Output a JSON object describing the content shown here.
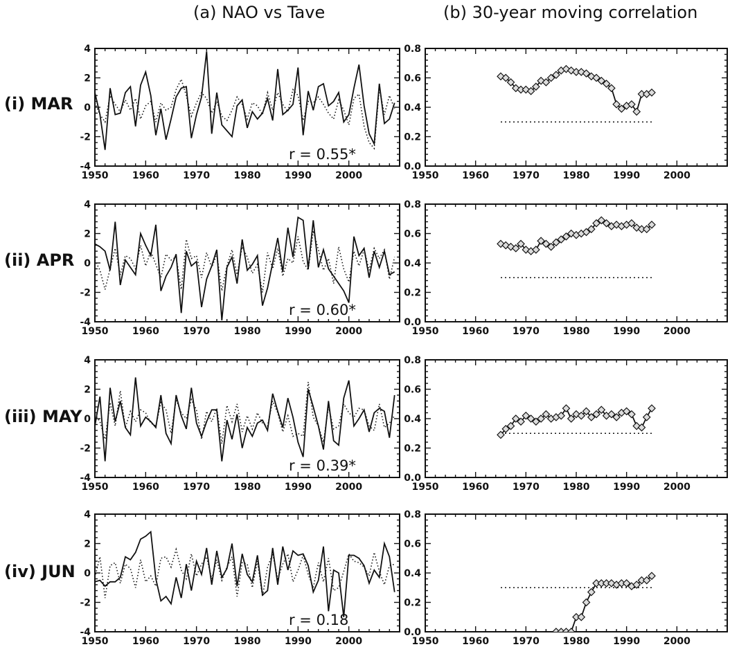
{
  "headers": {
    "left": "(a) NAO vs Tave",
    "right": "(b) 30-year moving correlation"
  },
  "rows": [
    {
      "label": "(i) MAR",
      "r_text": "r = 0.55*"
    },
    {
      "label": "(ii) APR",
      "r_text": "r = 0.60*"
    },
    {
      "label": "(iii) MAY",
      "r_text": "r = 0.39*"
    },
    {
      "label": "(iv) JUN",
      "r_text": "r = 0.18"
    }
  ],
  "chart_data": [
    {
      "type": "line",
      "panel": "(a) NAO vs Tave",
      "row": "(i) MAR",
      "xlim": [
        1950,
        2010
      ],
      "ylim": [
        -4,
        4
      ],
      "xticks": [
        1950,
        1960,
        1970,
        1980,
        1990,
        2000
      ],
      "yticks": [
        -4,
        -2,
        0,
        2,
        4
      ],
      "annotation": "r = 0.55*",
      "x_start": 1950,
      "series": [
        {
          "style": "solid",
          "values": [
            1.0,
            -0.5,
            -2.9,
            1.3,
            -0.5,
            -0.4,
            1.0,
            1.4,
            -1.3,
            1.5,
            2.4,
            0.8,
            -1.9,
            -0.1,
            -2.2,
            -0.8,
            0.7,
            1.3,
            1.4,
            -2.1,
            -0.5,
            0.7,
            3.8,
            -1.8,
            1.0,
            -1.2,
            -1.6,
            -2.0,
            0.1,
            0.5,
            -1.4,
            -0.3,
            -0.8,
            -0.4,
            0.6,
            -0.9,
            2.6,
            -0.5,
            -0.2,
            0.2,
            2.7,
            -1.9,
            1.1,
            -0.2,
            1.4,
            1.6,
            0.1,
            0.4,
            1.0,
            -1.0,
            -0.5,
            1.3,
            2.9,
            0.1,
            -1.8,
            -2.5,
            1.6,
            -1.1,
            -0.8,
            0.3
          ]
        },
        {
          "style": "dotted",
          "values": [
            0.3,
            -0.5,
            -1.0,
            0.8,
            0.2,
            -0.3,
            0.5,
            -0.2,
            0.6,
            -0.8,
            0.1,
            0.4,
            -1.0,
            0.3,
            -0.2,
            0.0,
            1.2,
            1.9,
            0.8,
            -0.6,
            0.3,
            1.0,
            0.6,
            -0.4,
            0.4,
            -0.6,
            -0.9,
            -0.2,
            0.7,
            0.2,
            -0.8,
            0.3,
            0.1,
            -0.5,
            1.0,
            -0.2,
            1.0,
            0.2,
            -0.3,
            1.2,
            0.8,
            -0.9,
            0.4,
            0.3,
            0.7,
            0.2,
            -0.4,
            -0.8,
            0.5,
            -0.2,
            -1.2,
            0.6,
            0.9,
            -1.3,
            -2.4,
            -2.8,
            1.3,
            -0.5,
            0.8,
            -0.1
          ]
        }
      ]
    },
    {
      "type": "line",
      "panel": "(b) 30-year moving correlation",
      "row": "(i) MAR",
      "xlim": [
        1950,
        2010
      ],
      "ylim": [
        0,
        0.8
      ],
      "xticks": [
        1950,
        1960,
        1970,
        1980,
        1990,
        2000
      ],
      "yticks": [
        0.0,
        0.2,
        0.4,
        0.6,
        0.8
      ],
      "threshold": 0.3,
      "x": [
        1965,
        1966,
        1967,
        1968,
        1969,
        1970,
        1971,
        1972,
        1973,
        1974,
        1975,
        1976,
        1977,
        1978,
        1979,
        1980,
        1981,
        1982,
        1983,
        1984,
        1985,
        1986,
        1987,
        1988,
        1989,
        1990,
        1991,
        1992,
        1993,
        1994,
        1995
      ],
      "values": [
        0.61,
        0.6,
        0.57,
        0.53,
        0.52,
        0.52,
        0.51,
        0.54,
        0.58,
        0.57,
        0.6,
        0.62,
        0.65,
        0.66,
        0.65,
        0.64,
        0.64,
        0.63,
        0.61,
        0.6,
        0.58,
        0.56,
        0.53,
        0.42,
        0.39,
        0.41,
        0.42,
        0.37,
        0.49,
        0.49,
        0.5
      ]
    },
    {
      "type": "line",
      "panel": "(a) NAO vs Tave",
      "row": "(ii) APR",
      "xlim": [
        1950,
        2010
      ],
      "ylim": [
        -4,
        4
      ],
      "xticks": [
        1950,
        1960,
        1970,
        1980,
        1990,
        2000
      ],
      "yticks": [
        -4,
        -2,
        0,
        2,
        4
      ],
      "annotation": "r = 0.60*",
      "x_start": 1950,
      "series": [
        {
          "style": "solid",
          "values": [
            1.3,
            1.1,
            0.8,
            -0.5,
            2.8,
            -1.5,
            0.2,
            -0.3,
            -0.8,
            2.0,
            1.2,
            0.5,
            2.6,
            -1.9,
            -0.9,
            -0.3,
            0.6,
            -3.4,
            0.8,
            -0.2,
            0.1,
            -3.0,
            -1.1,
            -0.2,
            0.9,
            -3.9,
            -0.3,
            0.4,
            -1.4,
            1.6,
            -0.5,
            -0.1,
            0.5,
            -2.9,
            -1.7,
            0.0,
            1.7,
            -0.6,
            2.4,
            0.4,
            3.1,
            2.9,
            -0.4,
            2.9,
            -0.3,
            0.9,
            -0.4,
            -0.9,
            -1.4,
            -1.9,
            -2.7,
            1.8,
            0.5,
            1.0,
            -1.0,
            0.8,
            -0.3,
            0.8,
            -0.8,
            -0.6
          ]
        },
        {
          "style": "dotted",
          "values": [
            0.2,
            -0.5,
            -1.8,
            -0.4,
            1.0,
            -0.8,
            0.5,
            0.3,
            -0.4,
            1.2,
            -0.2,
            0.8,
            -0.1,
            -1.0,
            0.6,
            0.2,
            0.4,
            -1.8,
            1.6,
            0.3,
            0.5,
            -1.0,
            0.7,
            -0.3,
            0.6,
            -1.9,
            -0.2,
            0.9,
            -0.8,
            1.1,
            0.4,
            -0.7,
            -0.1,
            -2.0,
            0.7,
            -0.4,
            1.0,
            -0.9,
            0.3,
            0.0,
            1.8,
            0.1,
            -0.5,
            2.2,
            0.9,
            -0.5,
            0.3,
            -1.4,
            1.1,
            -0.4,
            -1.3,
            0.8,
            -0.2,
            0.9,
            -0.5,
            1.0,
            0.3,
            0.9,
            -1.1,
            0.4
          ]
        }
      ]
    },
    {
      "type": "line",
      "panel": "(b) 30-year moving correlation",
      "row": "(ii) APR",
      "xlim": [
        1950,
        2010
      ],
      "ylim": [
        0,
        0.8
      ],
      "xticks": [
        1950,
        1960,
        1970,
        1980,
        1990,
        2000
      ],
      "yticks": [
        0.0,
        0.2,
        0.4,
        0.6,
        0.8
      ],
      "threshold": 0.3,
      "x": [
        1965,
        1966,
        1967,
        1968,
        1969,
        1970,
        1971,
        1972,
        1973,
        1974,
        1975,
        1976,
        1977,
        1978,
        1979,
        1980,
        1981,
        1982,
        1983,
        1984,
        1985,
        1986,
        1987,
        1988,
        1989,
        1990,
        1991,
        1992,
        1993,
        1994,
        1995
      ],
      "values": [
        0.53,
        0.52,
        0.51,
        0.5,
        0.53,
        0.49,
        0.48,
        0.49,
        0.55,
        0.53,
        0.51,
        0.54,
        0.56,
        0.58,
        0.6,
        0.59,
        0.6,
        0.61,
        0.63,
        0.67,
        0.69,
        0.67,
        0.65,
        0.66,
        0.65,
        0.66,
        0.67,
        0.64,
        0.63,
        0.63,
        0.66
      ]
    },
    {
      "type": "line",
      "panel": "(a) NAO vs Tave",
      "row": "(iii) MAY",
      "xlim": [
        1950,
        2010
      ],
      "ylim": [
        -4,
        4
      ],
      "xticks": [
        1950,
        1960,
        1970,
        1980,
        1990,
        2000
      ],
      "yticks": [
        -4,
        -2,
        0,
        2,
        4
      ],
      "annotation": "r = 0.39*",
      "x_start": 1950,
      "series": [
        {
          "style": "solid",
          "values": [
            -0.5,
            1.5,
            -2.9,
            2.1,
            -0.2,
            1.2,
            -0.6,
            -1.1,
            2.8,
            -0.5,
            0.1,
            -0.2,
            -0.6,
            1.6,
            -1.0,
            -1.7,
            1.6,
            0.2,
            -0.7,
            2.1,
            -0.3,
            -1.2,
            -0.2,
            0.6,
            0.6,
            -2.9,
            -0.1,
            -1.4,
            0.3,
            -2.0,
            -0.6,
            -1.2,
            -0.3,
            -0.1,
            -0.8,
            1.7,
            0.5,
            -0.6,
            1.4,
            0.1,
            -1.6,
            -2.6,
            2.0,
            0.8,
            -0.5,
            -2.1,
            1.2,
            -1.5,
            -1.8,
            1.4,
            2.6,
            -0.5,
            0.0,
            0.6,
            -0.9,
            0.4,
            0.7,
            0.5,
            -1.3,
            1.6
          ]
        },
        {
          "style": "dotted",
          "values": [
            0.3,
            -0.2,
            -1.4,
            1.1,
            -0.5,
            1.9,
            -0.6,
            0.5,
            -0.2,
            0.6,
            0.4,
            -0.3,
            -0.5,
            1.1,
            0.6,
            -1.0,
            1.3,
            0.4,
            0.0,
            1.3,
            0.6,
            -1.4,
            0.5,
            -0.2,
            0.7,
            -1.7,
            0.9,
            -0.2,
            1.0,
            -0.9,
            0.2,
            -0.7,
            0.4,
            -0.3,
            -0.5,
            1.2,
            0.4,
            -0.9,
            0.2,
            -1.2,
            -1.0,
            -1.2,
            2.5,
            0.1,
            -0.5,
            -1.6,
            0.8,
            -0.7,
            -0.5,
            1.0,
            0.4,
            0.1,
            0.7,
            0.6,
            -0.5,
            -0.8,
            1.0,
            -0.6,
            -0.3,
            0.2
          ]
        }
      ]
    },
    {
      "type": "line",
      "panel": "(b) 30-year moving correlation",
      "row": "(iii) MAY",
      "xlim": [
        1950,
        2010
      ],
      "ylim": [
        0,
        0.8
      ],
      "xticks": [
        1950,
        1960,
        1970,
        1980,
        1990,
        2000
      ],
      "yticks": [
        0.0,
        0.2,
        0.4,
        0.6,
        0.8
      ],
      "threshold": 0.3,
      "x": [
        1965,
        1966,
        1967,
        1968,
        1969,
        1970,
        1971,
        1972,
        1973,
        1974,
        1975,
        1976,
        1977,
        1978,
        1979,
        1980,
        1981,
        1982,
        1983,
        1984,
        1985,
        1986,
        1987,
        1988,
        1989,
        1990,
        1991,
        1992,
        1993,
        1994,
        1995
      ],
      "values": [
        0.29,
        0.33,
        0.35,
        0.4,
        0.38,
        0.42,
        0.4,
        0.38,
        0.4,
        0.43,
        0.4,
        0.41,
        0.42,
        0.47,
        0.4,
        0.43,
        0.42,
        0.45,
        0.41,
        0.43,
        0.46,
        0.42,
        0.43,
        0.41,
        0.44,
        0.45,
        0.43,
        0.35,
        0.34,
        0.41,
        0.47
      ]
    },
    {
      "type": "line",
      "panel": "(a) NAO vs Tave",
      "row": "(iv) JUN",
      "xlim": [
        1950,
        2010
      ],
      "ylim": [
        -4,
        4
      ],
      "xticks": [
        1950,
        1960,
        1970,
        1980,
        1990,
        2000
      ],
      "yticks": [
        -4,
        -2,
        0,
        2,
        4
      ],
      "annotation": "r = 0.18",
      "x_start": 1950,
      "series": [
        {
          "style": "solid",
          "values": [
            -0.6,
            -0.5,
            -0.9,
            -0.6,
            -0.6,
            -0.3,
            1.1,
            0.9,
            1.4,
            2.3,
            2.5,
            2.8,
            -0.4,
            -1.9,
            -1.6,
            -2.1,
            -0.3,
            -1.7,
            0.6,
            -1.2,
            0.8,
            -0.1,
            1.7,
            -0.8,
            1.5,
            -0.3,
            0.3,
            2.0,
            -0.9,
            1.3,
            -0.1,
            -0.6,
            1.2,
            -1.5,
            -1.2,
            1.7,
            -0.8,
            1.8,
            0.2,
            1.5,
            1.2,
            1.3,
            0.5,
            -1.3,
            -0.5,
            1.8,
            -2.6,
            0.2,
            0.0,
            -3.0,
            1.2,
            1.2,
            1.0,
            0.5,
            -0.7,
            0.2,
            -0.3,
            2.0,
            1.1,
            -1.3
          ]
        },
        {
          "style": "dotted",
          "values": [
            -0.3,
            1.1,
            -1.7,
            0.5,
            0.7,
            -0.7,
            0.6,
            0.3,
            -1.0,
            0.9,
            -0.6,
            -0.2,
            -0.9,
            1.0,
            1.1,
            0.4,
            1.6,
            0.2,
            -0.4,
            1.3,
            -0.2,
            0.6,
            1.1,
            -0.4,
            0.9,
            -0.5,
            0.4,
            1.1,
            -1.6,
            0.7,
            0.6,
            -1.0,
            0.8,
            -1.6,
            0.4,
            1.3,
            -0.4,
            0.6,
            1.3,
            -0.6,
            0.2,
            1.2,
            -0.1,
            -1.0,
            0.7,
            -0.6,
            1.0,
            -1.2,
            -1.0,
            0.1,
            1.3,
            0.8,
            0.7,
            0.4,
            -0.2,
            1.4,
            0.1,
            -0.8,
            0.5,
            0.6
          ]
        }
      ]
    },
    {
      "type": "line",
      "panel": "(b) 30-year moving correlation",
      "row": "(iv) JUN",
      "xlim": [
        1950,
        2010
      ],
      "ylim": [
        0,
        0.8
      ],
      "xticks": [
        1950,
        1960,
        1970,
        1980,
        1990,
        2000
      ],
      "yticks": [
        0.0,
        0.2,
        0.4,
        0.6,
        0.8
      ],
      "threshold": 0.3,
      "x": [
        1976,
        1977,
        1978,
        1979,
        1980,
        1981,
        1982,
        1983,
        1984,
        1985,
        1986,
        1987,
        1988,
        1989,
        1990,
        1991,
        1992,
        1993,
        1994,
        1995
      ],
      "values": [
        0.0,
        0.0,
        0.0,
        0.0,
        0.1,
        0.1,
        0.2,
        0.27,
        0.33,
        0.33,
        0.33,
        0.33,
        0.32,
        0.33,
        0.33,
        0.31,
        0.32,
        0.35,
        0.35,
        0.38
      ]
    }
  ]
}
